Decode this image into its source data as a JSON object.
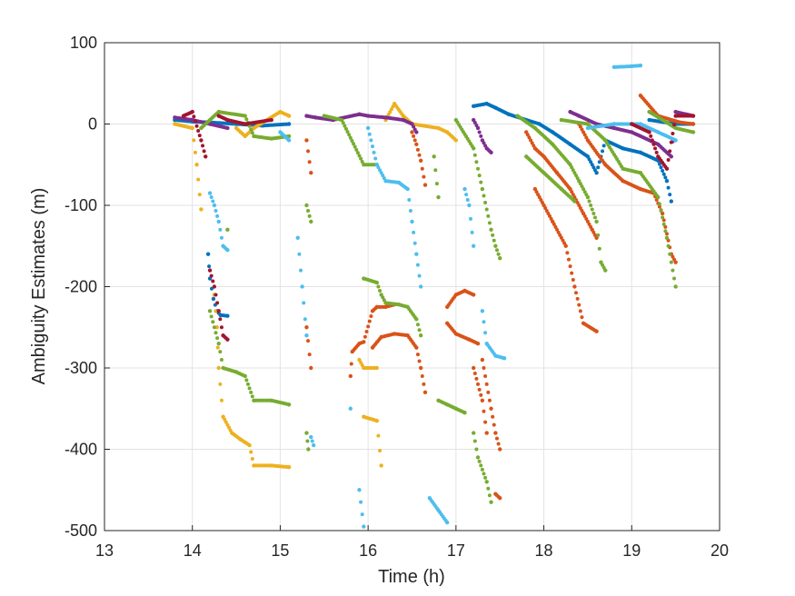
{
  "chart_data": {
    "type": "scatter",
    "title": "",
    "xlabel": "Time (h)",
    "ylabel": "Ambiguity Estimates (m)",
    "xlim": [
      13,
      20
    ],
    "ylim": [
      -500,
      100
    ],
    "xticks": [
      13,
      14,
      15,
      16,
      17,
      18,
      19,
      20
    ],
    "yticks": [
      100,
      0,
      -100,
      -200,
      -300,
      -400,
      -500
    ],
    "grid": true,
    "legend": "none",
    "colors": [
      "#0072BD",
      "#D95319",
      "#EDB120",
      "#7E2F8E",
      "#77AC30",
      "#4DBEEE",
      "#A2142F"
    ],
    "series": [
      {
        "color": "#0072BD",
        "values": [
          [
            13.8,
            5
          ],
          [
            14.0,
            3
          ],
          [
            14.2,
            2
          ],
          [
            14.5,
            0
          ],
          [
            14.8,
            -2
          ],
          [
            15.1,
            0
          ],
          [
            14.18,
            -160
          ],
          [
            14.2,
            -190
          ],
          [
            14.24,
            -215
          ],
          [
            14.28,
            -230
          ],
          [
            14.32,
            -235
          ],
          [
            14.4,
            -236
          ],
          [
            17.2,
            22
          ],
          [
            17.35,
            25
          ],
          [
            17.45,
            20
          ],
          [
            17.6,
            12
          ],
          [
            17.8,
            5
          ],
          [
            17.95,
            0
          ],
          [
            18.1,
            -10
          ],
          [
            18.3,
            -25
          ],
          [
            18.5,
            -40
          ],
          [
            18.6,
            -60
          ],
          [
            18.7,
            -20
          ],
          [
            18.9,
            -30
          ],
          [
            19.1,
            -35
          ],
          [
            19.3,
            -45
          ],
          [
            19.4,
            -70
          ],
          [
            19.45,
            -95
          ],
          [
            19.2,
            5
          ],
          [
            19.5,
            0
          ],
          [
            19.7,
            0
          ]
        ]
      },
      {
        "color": "#D95319",
        "values": [
          [
            15.3,
            -20
          ],
          [
            15.35,
            -60
          ],
          [
            15.3,
            -250
          ],
          [
            15.35,
            -300
          ],
          [
            15.8,
            -310
          ],
          [
            15.82,
            -280
          ],
          [
            15.9,
            -270
          ],
          [
            15.95,
            -268
          ],
          [
            16.05,
            -230
          ],
          [
            16.1,
            -225
          ],
          [
            16.2,
            -225
          ],
          [
            16.3,
            -222
          ],
          [
            16.05,
            -275
          ],
          [
            16.15,
            -262
          ],
          [
            16.3,
            -258
          ],
          [
            16.45,
            -260
          ],
          [
            16.55,
            -275
          ],
          [
            16.6,
            -300
          ],
          [
            16.65,
            -330
          ],
          [
            16.5,
            -10
          ],
          [
            16.55,
            -25
          ],
          [
            16.6,
            -45
          ],
          [
            16.65,
            -75
          ],
          [
            16.9,
            -225
          ],
          [
            17.0,
            -210
          ],
          [
            17.1,
            -205
          ],
          [
            17.2,
            -210
          ],
          [
            16.9,
            -245
          ],
          [
            17.0,
            -258
          ],
          [
            17.15,
            -265
          ],
          [
            17.25,
            -270
          ],
          [
            17.2,
            -300
          ],
          [
            17.3,
            -340
          ],
          [
            17.35,
            -380
          ],
          [
            17.45,
            -455
          ],
          [
            17.5,
            -460
          ],
          [
            17.3,
            -290
          ],
          [
            17.4,
            -350
          ],
          [
            17.45,
            -380
          ],
          [
            17.5,
            -400
          ],
          [
            17.8,
            -10
          ],
          [
            17.9,
            -30
          ],
          [
            18.0,
            -40
          ],
          [
            18.15,
            -60
          ],
          [
            18.3,
            -80
          ],
          [
            18.45,
            -110
          ],
          [
            18.55,
            -130
          ],
          [
            18.6,
            -140
          ],
          [
            17.9,
            -80
          ],
          [
            18.0,
            -100
          ],
          [
            18.1,
            -120
          ],
          [
            18.25,
            -150
          ],
          [
            18.35,
            -200
          ],
          [
            18.45,
            -245
          ],
          [
            18.6,
            -255
          ],
          [
            18.4,
            0
          ],
          [
            18.5,
            -20
          ],
          [
            18.7,
            -50
          ],
          [
            18.9,
            -70
          ],
          [
            19.1,
            -80
          ],
          [
            19.25,
            -85
          ],
          [
            19.35,
            -110
          ],
          [
            19.45,
            -160
          ],
          [
            19.5,
            -170
          ],
          [
            19.1,
            35
          ],
          [
            19.3,
            10
          ],
          [
            19.55,
            2
          ],
          [
            19.7,
            0
          ]
        ]
      },
      {
        "color": "#EDB120",
        "values": [
          [
            13.8,
            0
          ],
          [
            14.0,
            -5
          ],
          [
            14.05,
            -50
          ],
          [
            14.1,
            -105
          ],
          [
            14.25,
            -210
          ],
          [
            14.28,
            -250
          ],
          [
            14.3,
            -300
          ],
          [
            14.35,
            -360
          ],
          [
            14.45,
            -380
          ],
          [
            14.55,
            -388
          ],
          [
            14.65,
            -395
          ],
          [
            14.7,
            -420
          ],
          [
            14.9,
            -420
          ],
          [
            15.1,
            -422
          ],
          [
            14.5,
            -5
          ],
          [
            14.6,
            -15
          ],
          [
            14.7,
            -5
          ],
          [
            15.0,
            15
          ],
          [
            15.1,
            10
          ],
          [
            15.9,
            -290
          ],
          [
            15.95,
            -300
          ],
          [
            16.1,
            -300
          ],
          [
            15.95,
            -360
          ],
          [
            16.1,
            -365
          ],
          [
            16.15,
            -420
          ],
          [
            16.2,
            5
          ],
          [
            16.3,
            25
          ],
          [
            16.4,
            10
          ],
          [
            16.5,
            0
          ],
          [
            16.8,
            -5
          ],
          [
            16.9,
            -10
          ],
          [
            17.0,
            -20
          ]
        ]
      },
      {
        "color": "#7E2F8E",
        "values": [
          [
            13.8,
            8
          ],
          [
            14.0,
            5
          ],
          [
            14.2,
            0
          ],
          [
            14.4,
            -5
          ],
          [
            15.3,
            10
          ],
          [
            15.4,
            8
          ],
          [
            15.6,
            5
          ],
          [
            15.9,
            12
          ],
          [
            16.0,
            10
          ],
          [
            16.2,
            8
          ],
          [
            16.4,
            5
          ],
          [
            16.5,
            0
          ],
          [
            16.55,
            -10
          ],
          [
            17.2,
            5
          ],
          [
            17.25,
            -5
          ],
          [
            17.3,
            -20
          ],
          [
            17.35,
            -30
          ],
          [
            17.4,
            -35
          ],
          [
            18.3,
            15
          ],
          [
            18.4,
            10
          ],
          [
            18.6,
            0
          ],
          [
            18.8,
            -5
          ],
          [
            19.0,
            -10
          ],
          [
            19.3,
            -25
          ],
          [
            19.45,
            -40
          ],
          [
            19.5,
            15
          ],
          [
            19.7,
            10
          ]
        ]
      },
      {
        "color": "#77AC30",
        "values": [
          [
            14.1,
            -5
          ],
          [
            14.2,
            5
          ],
          [
            14.3,
            15
          ],
          [
            14.6,
            10
          ],
          [
            14.7,
            -15
          ],
          [
            14.9,
            -18
          ],
          [
            15.1,
            -15
          ],
          [
            14.2,
            -230
          ],
          [
            14.3,
            -270
          ],
          [
            14.35,
            -300
          ],
          [
            14.5,
            -305
          ],
          [
            14.6,
            -310
          ],
          [
            14.7,
            -340
          ],
          [
            14.9,
            -340
          ],
          [
            15.1,
            -345
          ],
          [
            14.4,
            -130
          ],
          [
            15.3,
            -100
          ],
          [
            15.35,
            -120
          ],
          [
            15.3,
            -380
          ],
          [
            15.32,
            -400
          ],
          [
            15.5,
            10
          ],
          [
            15.7,
            5
          ],
          [
            15.95,
            -50
          ],
          [
            16.1,
            -50
          ],
          [
            15.95,
            -190
          ],
          [
            16.1,
            -195
          ],
          [
            16.15,
            -210
          ],
          [
            16.2,
            -220
          ],
          [
            16.35,
            -222
          ],
          [
            16.45,
            -225
          ],
          [
            16.55,
            -240
          ],
          [
            16.6,
            -260
          ],
          [
            16.75,
            -40
          ],
          [
            16.8,
            -90
          ],
          [
            16.8,
            -340
          ],
          [
            16.9,
            -345
          ],
          [
            17.0,
            -350
          ],
          [
            17.1,
            -355
          ],
          [
            17.0,
            5
          ],
          [
            17.2,
            -30
          ],
          [
            17.3,
            -80
          ],
          [
            17.4,
            -130
          ],
          [
            17.45,
            -150
          ],
          [
            17.5,
            -165
          ],
          [
            17.2,
            -380
          ],
          [
            17.25,
            -410
          ],
          [
            17.35,
            -440
          ],
          [
            17.4,
            -465
          ],
          [
            17.7,
            10
          ],
          [
            17.9,
            -5
          ],
          [
            18.1,
            -25
          ],
          [
            18.3,
            -50
          ],
          [
            18.4,
            -70
          ],
          [
            18.5,
            -90
          ],
          [
            18.6,
            -120
          ],
          [
            18.65,
            -170
          ],
          [
            18.7,
            -180
          ],
          [
            17.8,
            -40
          ],
          [
            18.0,
            -60
          ],
          [
            18.2,
            -80
          ],
          [
            18.35,
            -95
          ],
          [
            18.2,
            5
          ],
          [
            18.5,
            0
          ],
          [
            18.7,
            -20
          ],
          [
            18.9,
            -55
          ],
          [
            19.1,
            -60
          ],
          [
            19.3,
            -90
          ],
          [
            19.4,
            -140
          ],
          [
            19.5,
            -200
          ],
          [
            19.2,
            15
          ],
          [
            19.5,
            -5
          ],
          [
            19.7,
            -10
          ]
        ]
      },
      {
        "color": "#4DBEEE",
        "values": [
          [
            14.2,
            -85
          ],
          [
            14.25,
            -100
          ],
          [
            14.3,
            -120
          ],
          [
            14.35,
            -150
          ],
          [
            14.4,
            -155
          ],
          [
            15.0,
            -10
          ],
          [
            15.1,
            -20
          ],
          [
            15.2,
            -140
          ],
          [
            15.25,
            -200
          ],
          [
            15.3,
            -260
          ],
          [
            15.35,
            -385
          ],
          [
            15.38,
            -395
          ],
          [
            15.8,
            -350
          ],
          [
            15.9,
            -450
          ],
          [
            15.95,
            -495
          ],
          [
            16.0,
            -5
          ],
          [
            16.1,
            -50
          ],
          [
            16.2,
            -70
          ],
          [
            16.35,
            -72
          ],
          [
            16.45,
            -80
          ],
          [
            16.5,
            -120
          ],
          [
            16.55,
            -160
          ],
          [
            16.6,
            -200
          ],
          [
            16.7,
            -460
          ],
          [
            16.8,
            -475
          ],
          [
            16.9,
            -490
          ],
          [
            17.1,
            -80
          ],
          [
            17.15,
            -100
          ],
          [
            17.2,
            -150
          ],
          [
            17.3,
            -230
          ],
          [
            17.35,
            -270
          ],
          [
            17.45,
            -285
          ],
          [
            17.55,
            -288
          ],
          [
            18.8,
            70
          ],
          [
            19.0,
            71
          ],
          [
            19.1,
            72
          ],
          [
            18.5,
            -5
          ],
          [
            18.8,
            0
          ],
          [
            19.1,
            0
          ],
          [
            19.3,
            -10
          ],
          [
            19.5,
            -20
          ]
        ]
      },
      {
        "color": "#A2142F",
        "values": [
          [
            13.9,
            10
          ],
          [
            14.0,
            15
          ],
          [
            14.1,
            -20
          ],
          [
            14.15,
            -40
          ],
          [
            14.2,
            -180
          ],
          [
            14.25,
            -200
          ],
          [
            14.3,
            -230
          ],
          [
            14.35,
            -260
          ],
          [
            14.4,
            -265
          ],
          [
            14.3,
            10
          ],
          [
            14.4,
            5
          ],
          [
            14.6,
            0
          ],
          [
            14.9,
            5
          ],
          [
            19.0,
            0
          ],
          [
            19.2,
            -10
          ],
          [
            19.3,
            -40
          ],
          [
            19.4,
            -55
          ],
          [
            19.5,
            10
          ],
          [
            19.7,
            10
          ]
        ]
      }
    ]
  }
}
